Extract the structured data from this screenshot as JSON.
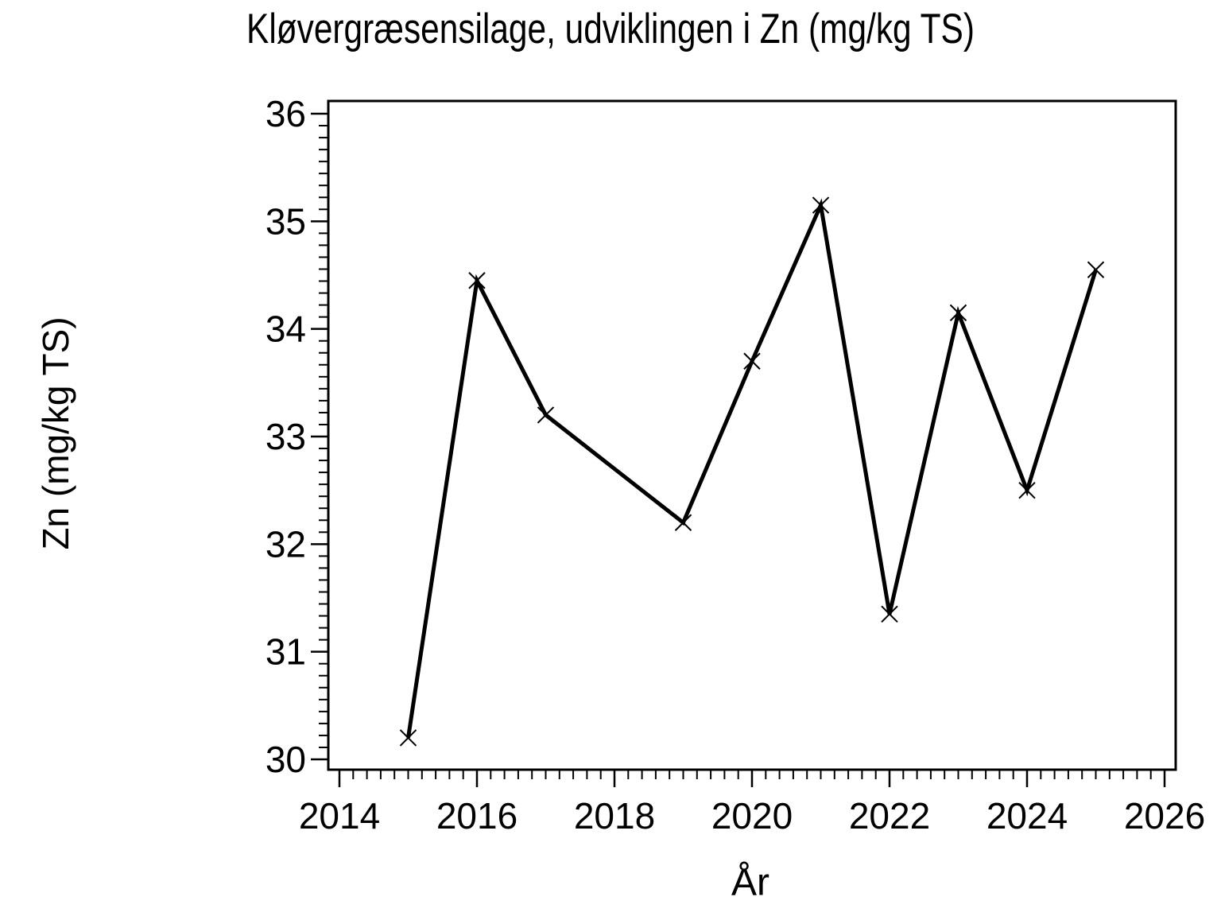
{
  "page": {
    "background_color": "#ffffff",
    "foreground_color": "#000000"
  },
  "chart_data": {
    "type": "line",
    "title": "Kløvergræsensilage, udviklingen i Zn (mg/kg TS)",
    "xlabel": "År",
    "ylabel": "Zn (mg/kg TS)",
    "series": [
      {
        "name": "Zn (mg/kg TS)",
        "x": [
          2015,
          2016,
          2017,
          2019,
          2020,
          2021,
          2022,
          2023,
          2024,
          2025
        ],
        "y": [
          30.2,
          34.45,
          33.2,
          32.2,
          33.7,
          35.15,
          31.35,
          34.15,
          32.5,
          34.55
        ],
        "marker": "x",
        "color": "#000000"
      }
    ],
    "xlim": [
      2014,
      2026
    ],
    "ylim": [
      30,
      36
    ],
    "x_major_ticks": [
      2014,
      2016,
      2018,
      2020,
      2022,
      2024,
      2026
    ],
    "y_major_ticks": [
      30,
      31,
      32,
      33,
      34,
      35,
      36
    ],
    "x_minor_ticks_between_majors": 9,
    "y_minor_ticks_between_majors": 8,
    "grid": false,
    "legend_position": "none",
    "note": "no data point for 2018"
  }
}
